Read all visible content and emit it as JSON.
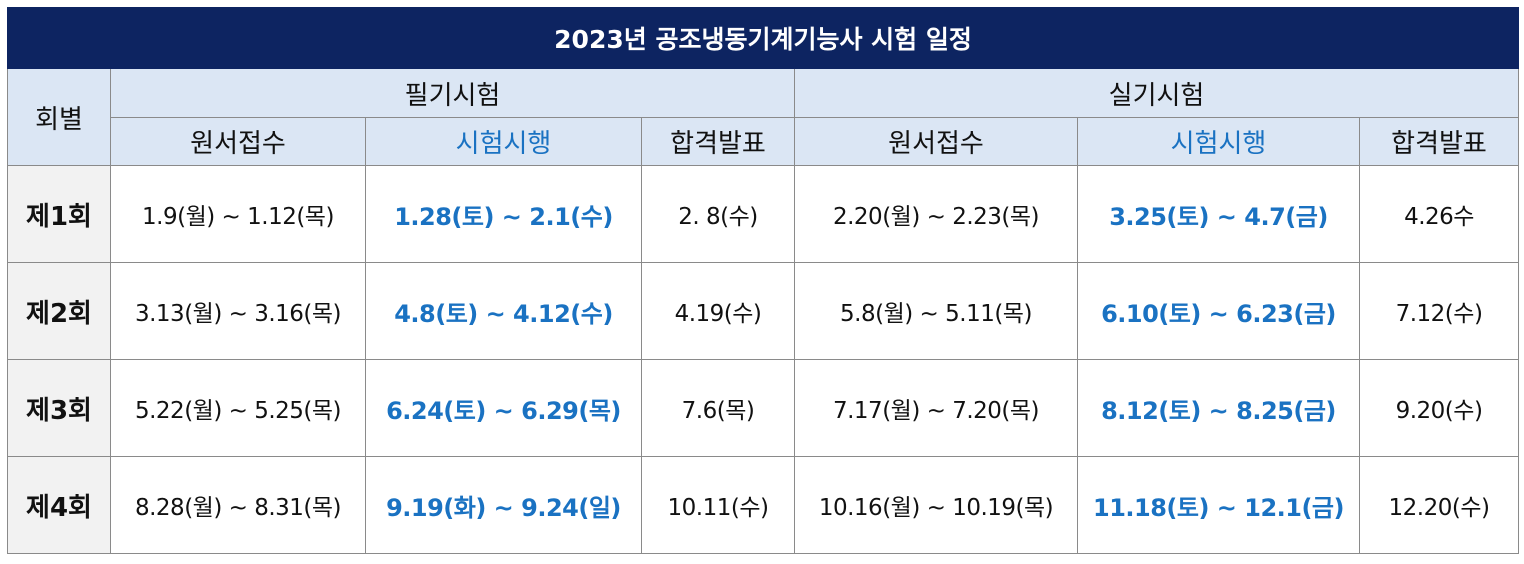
{
  "title": "2023년 공조냉동기계기능사 시험 일정",
  "headers": {
    "round": "회별",
    "written": "필기시험",
    "practical": "실기시험",
    "sub": [
      "원서접수",
      "시험시행",
      "합격발표",
      "원서접수",
      "시험시행",
      "합격발표"
    ]
  },
  "colors": {
    "title_bg": "#0d2461",
    "header_bg": "#dbe6f4",
    "round_bg": "#f2f2f2",
    "exam_text": "#1a72c2"
  },
  "rows": [
    {
      "round": "제1회",
      "written_apply": "1.9(월) ~ 1.12(목)",
      "written_exam": "1.28(토) ~ 2.1(수)",
      "written_result": "2. 8(수)",
      "practical_apply": "2.20(월) ~ 2.23(목)",
      "practical_exam": "3.25(토) ~ 4.7(금)",
      "practical_result": "4.26수"
    },
    {
      "round": "제2회",
      "written_apply": "3.13(월) ~ 3.16(목)",
      "written_exam": "4.8(토) ~ 4.12(수)",
      "written_result": "4.19(수)",
      "practical_apply": "5.8(월) ~ 5.11(목)",
      "practical_exam": "6.10(토) ~ 6.23(금)",
      "practical_result": "7.12(수)"
    },
    {
      "round": "제3회",
      "written_apply": "5.22(월) ~ 5.25(목)",
      "written_exam": "6.24(토) ~ 6.29(목)",
      "written_result": "7.6(목)",
      "practical_apply": "7.17(월) ~ 7.20(목)",
      "practical_exam": "8.12(토) ~ 8.25(금)",
      "practical_result": "9.20(수)"
    },
    {
      "round": "제4회",
      "written_apply": "8.28(월) ~ 8.31(목)",
      "written_exam": "9.19(화) ~ 9.24(일)",
      "written_result": "10.11(수)",
      "practical_apply": "10.16(월) ~ 10.19(목)",
      "practical_exam": "11.18(토) ~ 12.1(금)",
      "practical_result": "12.20(수)"
    }
  ]
}
